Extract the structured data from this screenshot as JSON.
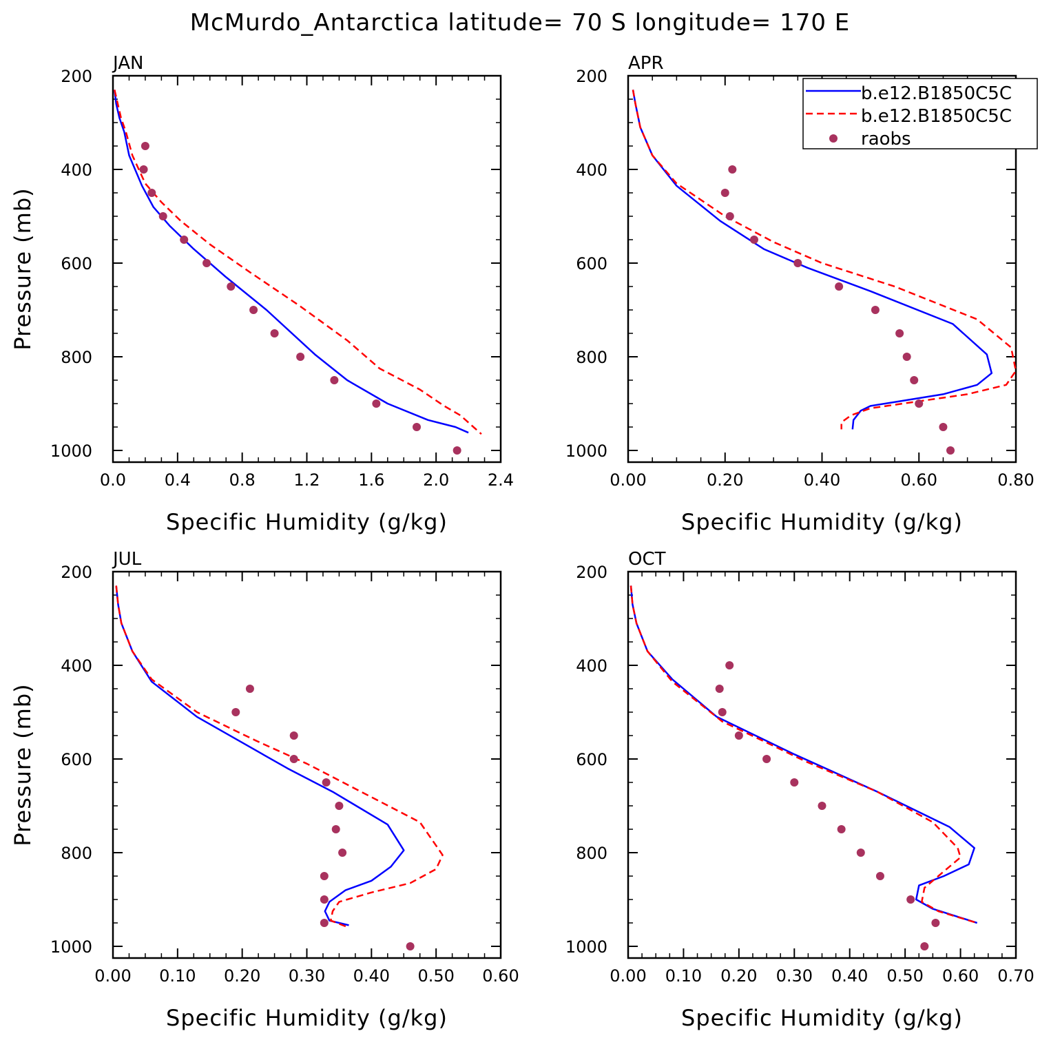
{
  "title": "McMurdo_Antarctica  latitude= 70 S longitude= 170 E",
  "legend": {
    "placement": "top-right of APR panel",
    "entries": [
      {
        "label": "b.e12.B1850C5C",
        "color": "#0000ff",
        "style": "solid"
      },
      {
        "label": "b.e12.B1850C5C",
        "color": "#ff0000",
        "style": "dashed"
      },
      {
        "label": "raobs",
        "color": "#a8325e",
        "style": "marker"
      }
    ]
  },
  "colors": {
    "model_solid": "#0000ff",
    "model_dashed": "#ff0000",
    "raobs": "#a8325e"
  },
  "chart_data": [
    {
      "type": "line",
      "panel": "JAN",
      "xlabel": "Specific Humidity (g/kg)",
      "ylabel": "Pressure (mb)",
      "xlim": [
        0,
        2.4
      ],
      "xticks": [
        "0.0",
        "0.4",
        "0.8",
        "1.2",
        "1.6",
        "2.0",
        "2.4"
      ],
      "xtick_values": [
        0,
        0.4,
        0.8,
        1.2,
        1.6,
        2.0,
        2.4
      ],
      "ylim": [
        200,
        1025
      ],
      "yticks": [
        "200",
        "400",
        "600",
        "800",
        "1000"
      ],
      "yaxis_inverted": true,
      "series": [
        {
          "name": "b.e12.B1850C5C",
          "style": "solid",
          "color": "#0000ff",
          "x": [
            0.01,
            0.02,
            0.04,
            0.07,
            0.1,
            0.18,
            0.25,
            0.35,
            0.5,
            0.7,
            0.95,
            1.25,
            1.45,
            1.7,
            1.95,
            2.12,
            2.2
          ],
          "y": [
            230,
            260,
            290,
            320,
            370,
            435,
            480,
            520,
            570,
            630,
            700,
            795,
            850,
            900,
            935,
            950,
            962
          ]
        },
        {
          "name": "b.e12.B1850C5C",
          "style": "dashed",
          "color": "#ff0000",
          "x": [
            0.01,
            0.03,
            0.05,
            0.08,
            0.12,
            0.2,
            0.3,
            0.42,
            0.6,
            0.85,
            1.15,
            1.45,
            1.65,
            1.9,
            2.05,
            2.15,
            2.28
          ],
          "y": [
            230,
            260,
            290,
            320,
            370,
            430,
            470,
            510,
            560,
            620,
            690,
            765,
            825,
            870,
            905,
            925,
            965
          ]
        },
        {
          "name": "raobs",
          "style": "marker",
          "color": "#a8325e",
          "x": [
            0.2,
            0.19,
            0.24,
            0.31,
            0.44,
            0.58,
            0.73,
            0.87,
            1.0,
            1.16,
            1.37,
            1.63,
            1.88,
            2.13
          ],
          "y": [
            350,
            400,
            450,
            500,
            550,
            600,
            650,
            700,
            750,
            800,
            850,
            900,
            950,
            1000
          ]
        }
      ]
    },
    {
      "type": "line",
      "panel": "APR",
      "xlabel": "Specific Humidity (g/kg)",
      "ylabel": "",
      "xlim": [
        0,
        0.8
      ],
      "xticks": [
        "0.00",
        "0.20",
        "0.40",
        "0.60",
        "0.80"
      ],
      "xtick_values": [
        0,
        0.2,
        0.4,
        0.6,
        0.8
      ],
      "ylim": [
        200,
        1025
      ],
      "yticks": [
        "200",
        "400",
        "600",
        "800",
        "1000"
      ],
      "yaxis_inverted": true,
      "series": [
        {
          "name": "b.e12.B1850C5C",
          "style": "solid",
          "color": "#0000ff",
          "x": [
            0.01,
            0.015,
            0.025,
            0.05,
            0.1,
            0.19,
            0.28,
            0.37,
            0.5,
            0.67,
            0.74,
            0.75,
            0.72,
            0.65,
            0.56,
            0.5,
            0.48,
            0.465,
            0.463
          ],
          "y": [
            230,
            260,
            310,
            370,
            435,
            510,
            570,
            610,
            660,
            730,
            795,
            835,
            860,
            880,
            895,
            905,
            915,
            935,
            955
          ]
        },
        {
          "name": "b.e12.B1850C5C",
          "style": "dashed",
          "color": "#ff0000",
          "x": [
            0.01,
            0.015,
            0.025,
            0.05,
            0.1,
            0.2,
            0.3,
            0.4,
            0.55,
            0.72,
            0.79,
            0.8,
            0.78,
            0.7,
            0.6,
            0.5,
            0.46,
            0.44,
            0.44
          ],
          "y": [
            230,
            260,
            310,
            370,
            430,
            500,
            555,
            600,
            650,
            720,
            780,
            830,
            860,
            880,
            895,
            910,
            925,
            940,
            955
          ]
        },
        {
          "name": "raobs",
          "style": "marker",
          "color": "#a8325e",
          "x": [
            0.215,
            0.2,
            0.21,
            0.26,
            0.35,
            0.435,
            0.51,
            0.56,
            0.575,
            0.59,
            0.6,
            0.65,
            0.665
          ],
          "y": [
            400,
            450,
            500,
            550,
            600,
            650,
            700,
            750,
            800,
            850,
            900,
            950,
            1000
          ]
        }
      ]
    },
    {
      "type": "line",
      "panel": "JUL",
      "xlabel": "Specific Humidity (g/kg)",
      "ylabel": "Pressure (mb)",
      "xlim": [
        0,
        0.6
      ],
      "xticks": [
        "0.00",
        "0.10",
        "0.20",
        "0.30",
        "0.40",
        "0.50",
        "0.60"
      ],
      "xtick_values": [
        0,
        0.1,
        0.2,
        0.3,
        0.4,
        0.5,
        0.6
      ],
      "ylim": [
        200,
        1025
      ],
      "yticks": [
        "200",
        "400",
        "600",
        "800",
        "1000"
      ],
      "yaxis_inverted": true,
      "series": [
        {
          "name": "b.e12.B1850C5C",
          "style": "solid",
          "color": "#0000ff",
          "x": [
            0.005,
            0.008,
            0.013,
            0.03,
            0.06,
            0.13,
            0.2,
            0.27,
            0.34,
            0.425,
            0.45,
            0.43,
            0.4,
            0.36,
            0.335,
            0.328,
            0.335,
            0.365
          ],
          "y": [
            230,
            270,
            310,
            370,
            435,
            510,
            565,
            620,
            670,
            740,
            795,
            830,
            860,
            880,
            905,
            925,
            945,
            955
          ]
        },
        {
          "name": "b.e12.B1850C5C",
          "style": "dashed",
          "color": "#ff0000",
          "x": [
            0.005,
            0.008,
            0.013,
            0.03,
            0.06,
            0.13,
            0.22,
            0.3,
            0.37,
            0.475,
            0.51,
            0.5,
            0.46,
            0.4,
            0.35,
            0.34,
            0.337,
            0.365
          ],
          "y": [
            230,
            270,
            310,
            370,
            430,
            500,
            560,
            610,
            660,
            735,
            805,
            835,
            865,
            885,
            905,
            925,
            945,
            960
          ]
        },
        {
          "name": "raobs",
          "style": "marker",
          "color": "#a8325e",
          "x": [
            0.212,
            0.19,
            0.28,
            0.28,
            0.33,
            0.35,
            0.345,
            0.355,
            0.327,
            0.327,
            0.327,
            0.46
          ],
          "y": [
            450,
            500,
            550,
            600,
            650,
            700,
            750,
            800,
            850,
            900,
            950,
            1000
          ]
        }
      ]
    },
    {
      "type": "line",
      "panel": "OCT",
      "xlabel": "Specific Humidity (g/kg)",
      "ylabel": "",
      "xlim": [
        0,
        0.7
      ],
      "xticks": [
        "0.00",
        "0.10",
        "0.20",
        "0.30",
        "0.40",
        "0.50",
        "0.60",
        "0.70"
      ],
      "xtick_values": [
        0,
        0.1,
        0.2,
        0.3,
        0.4,
        0.5,
        0.6,
        0.7
      ],
      "ylim": [
        200,
        1025
      ],
      "yticks": [
        "200",
        "400",
        "600",
        "800",
        "1000"
      ],
      "yaxis_inverted": true,
      "series": [
        {
          "name": "b.e12.B1850C5C",
          "style": "solid",
          "color": "#0000ff",
          "x": [
            0.005,
            0.008,
            0.015,
            0.035,
            0.08,
            0.16,
            0.23,
            0.3,
            0.45,
            0.58,
            0.625,
            0.615,
            0.57,
            0.525,
            0.52,
            0.55,
            0.63
          ],
          "y": [
            230,
            270,
            310,
            370,
            430,
            510,
            550,
            590,
            670,
            745,
            790,
            825,
            850,
            870,
            900,
            920,
            950
          ]
        },
        {
          "name": "b.e12.B1850C5C",
          "style": "dashed",
          "color": "#ff0000",
          "x": [
            0.005,
            0.008,
            0.015,
            0.035,
            0.08,
            0.17,
            0.25,
            0.32,
            0.45,
            0.55,
            0.595,
            0.6,
            0.565,
            0.535,
            0.53,
            0.56,
            0.63
          ],
          "y": [
            230,
            270,
            310,
            370,
            435,
            520,
            565,
            605,
            670,
            735,
            790,
            810,
            845,
            875,
            905,
            925,
            950
          ]
        },
        {
          "name": "raobs",
          "style": "marker",
          "color": "#a8325e",
          "x": [
            0.183,
            0.165,
            0.17,
            0.2,
            0.25,
            0.3,
            0.35,
            0.385,
            0.42,
            0.455,
            0.51,
            0.555,
            0.535
          ],
          "y": [
            400,
            450,
            500,
            550,
            600,
            650,
            700,
            750,
            800,
            850,
            900,
            950,
            1000
          ]
        }
      ]
    }
  ]
}
